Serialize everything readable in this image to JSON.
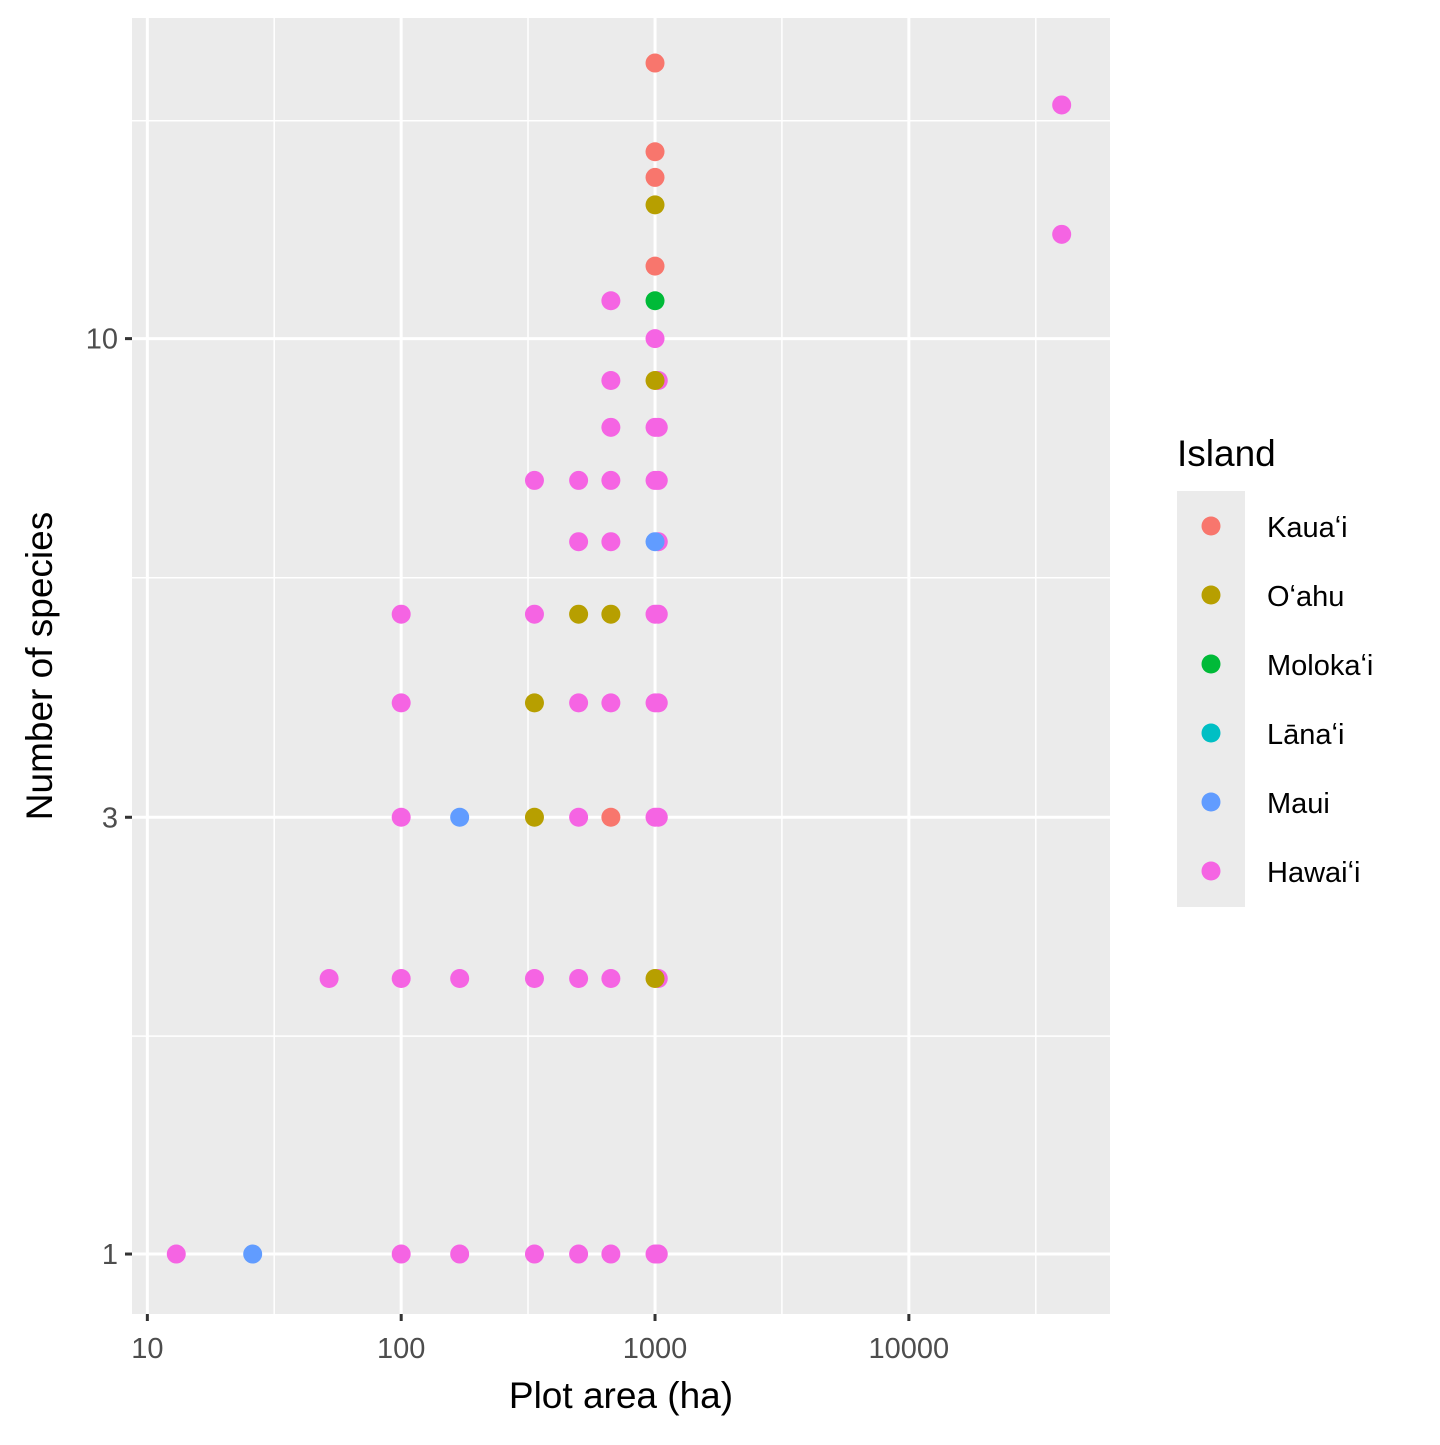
{
  "chart_data": {
    "type": "scatter",
    "title": "",
    "xlabel": "Plot area (ha)",
    "ylabel": "Number of species",
    "xscale": "log10",
    "yscale": "log10",
    "xlim": [
      8.7,
      62000
    ],
    "ylim": [
      0.86,
      22.4
    ],
    "xticks": [
      {
        "v": 10,
        "label": "10"
      },
      {
        "v": 100,
        "label": "100"
      },
      {
        "v": 1000,
        "label": "1000"
      },
      {
        "v": 10000,
        "label": "10000"
      }
    ],
    "yticks": [
      {
        "v": 1,
        "label": "1"
      },
      {
        "v": 3,
        "label": "3"
      },
      {
        "v": 10,
        "label": "10"
      }
    ],
    "xminor": [
      31.6,
      316,
      3162,
      31623
    ],
    "yminor": [
      1.73,
      5.48,
      17.3
    ],
    "grid": true,
    "legend": {
      "title": "Island",
      "placement": "right",
      "entries": [
        {
          "name": "Kauaʻi",
          "color": "#F8766D"
        },
        {
          "name": "Oʻahu",
          "color": "#B79F00"
        },
        {
          "name": "Molokaʻi",
          "color": "#00BA38"
        },
        {
          "name": "Lānaʻi",
          "color": "#00BFC4"
        },
        {
          "name": "Maui",
          "color": "#619CFF"
        },
        {
          "name": "Hawaiʻi",
          "color": "#F564E3"
        }
      ]
    },
    "series": [
      {
        "name": "Hawaiʻi",
        "points": [
          [
            40000,
            18
          ],
          [
            40000,
            13
          ],
          [
            670,
            11
          ],
          [
            1000,
            10
          ],
          [
            670,
            9
          ],
          [
            1030,
            9
          ],
          [
            670,
            8
          ],
          [
            1000,
            8
          ],
          [
            1030,
            8
          ],
          [
            335,
            7
          ],
          [
            500,
            7
          ],
          [
            670,
            7
          ],
          [
            1000,
            7
          ],
          [
            1030,
            7
          ],
          [
            500,
            6
          ],
          [
            670,
            6
          ],
          [
            1030,
            6
          ],
          [
            100,
            5
          ],
          [
            335,
            5
          ],
          [
            1000,
            5
          ],
          [
            1030,
            5
          ],
          [
            100,
            4
          ],
          [
            500,
            4
          ],
          [
            670,
            4
          ],
          [
            1000,
            4
          ],
          [
            1030,
            4
          ],
          [
            100,
            3
          ],
          [
            500,
            3
          ],
          [
            1000,
            3
          ],
          [
            1030,
            3
          ],
          [
            52,
            2
          ],
          [
            100,
            2
          ],
          [
            170,
            2
          ],
          [
            335,
            2
          ],
          [
            500,
            2
          ],
          [
            670,
            2
          ],
          [
            1030,
            2
          ],
          [
            13,
            1
          ],
          [
            100,
            1
          ],
          [
            170,
            1
          ],
          [
            335,
            1
          ],
          [
            500,
            1
          ],
          [
            670,
            1
          ],
          [
            1000,
            1
          ],
          [
            1030,
            1
          ]
        ]
      },
      {
        "name": "Kauaʻi",
        "points": [
          [
            1000,
            20
          ],
          [
            1000,
            16
          ],
          [
            1000,
            15
          ],
          [
            1000,
            12
          ],
          [
            670,
            3
          ]
        ]
      },
      {
        "name": "Oʻahu",
        "points": [
          [
            1000,
            14
          ],
          [
            1000,
            9
          ],
          [
            500,
            5
          ],
          [
            670,
            5
          ],
          [
            335,
            4
          ],
          [
            335,
            3
          ],
          [
            1000,
            2
          ]
        ]
      },
      {
        "name": "Molokaʻi",
        "points": [
          [
            1000,
            11
          ]
        ]
      },
      {
        "name": "Maui",
        "points": [
          [
            1000,
            6
          ],
          [
            170,
            3
          ],
          [
            26,
            1
          ]
        ]
      }
    ]
  }
}
